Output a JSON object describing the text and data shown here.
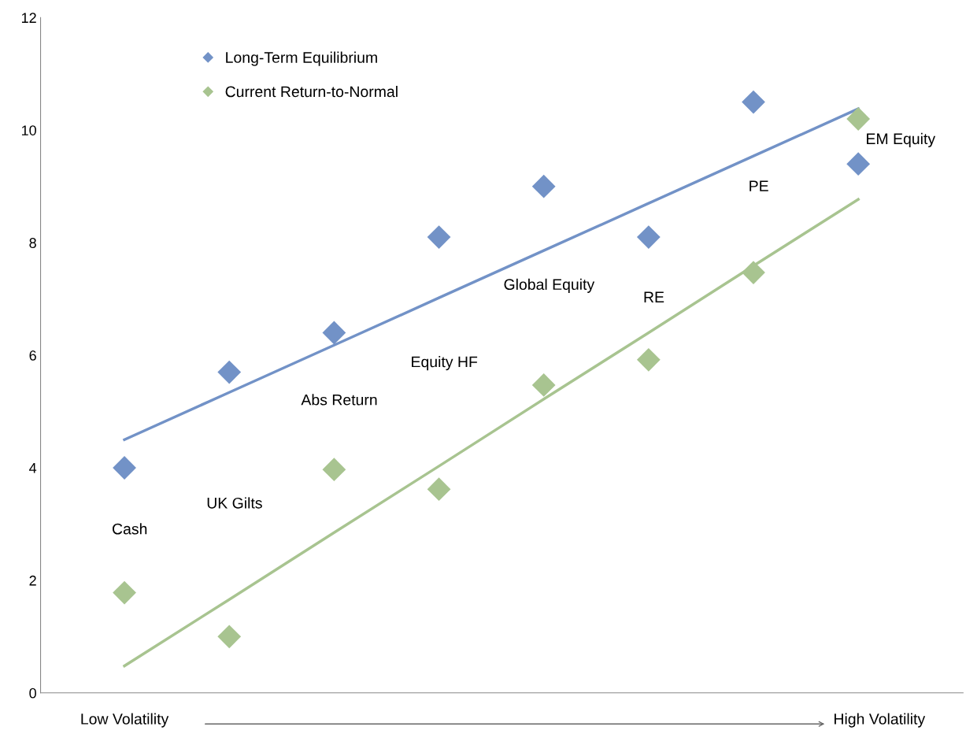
{
  "chart_data": {
    "type": "scatter",
    "categories": [
      null,
      null,
      null,
      null,
      null,
      null,
      null,
      null
    ],
    "series": [
      {
        "name": "Long-Term Equilibrium",
        "color": "#7292c7",
        "values": [
          4.0,
          5.7,
          6.4,
          8.1,
          9.0,
          8.1,
          10.5,
          9.4
        ]
      },
      {
        "name": "Current Return-to-Normal",
        "color": "#a8c490",
        "values": [
          1.78,
          1.0,
          3.97,
          3.62,
          5.47,
          5.92,
          7.47,
          10.2
        ]
      },
      {
        "color": "#7292c7",
        "type": "line",
        "marker": "none",
        "values": [
          4.5,
          5.34,
          6.18,
          7.02,
          7.86,
          8.7,
          9.54,
          10.38
        ]
      },
      {
        "color": "#a8c490",
        "type": "line",
        "marker": "none",
        "values": [
          0.48,
          1.66,
          2.85,
          4.03,
          5.22,
          6.4,
          7.59,
          8.77
        ]
      }
    ],
    "annotations": [
      "Cash",
      "UK Gilts",
      "Abs Return",
      "Equity HF",
      "Global Equity",
      "RE",
      "PE",
      "EM Equity",
      "Low Volatility",
      "High Volatility"
    ],
    "ylim": [
      0,
      12
    ],
    "yticks": [
      0,
      2,
      4,
      6,
      8,
      10,
      12
    ],
    "tick_labels": "y",
    "grid": false,
    "legend": "top left",
    "marker": "diamond",
    "line_style": "solid"
  }
}
